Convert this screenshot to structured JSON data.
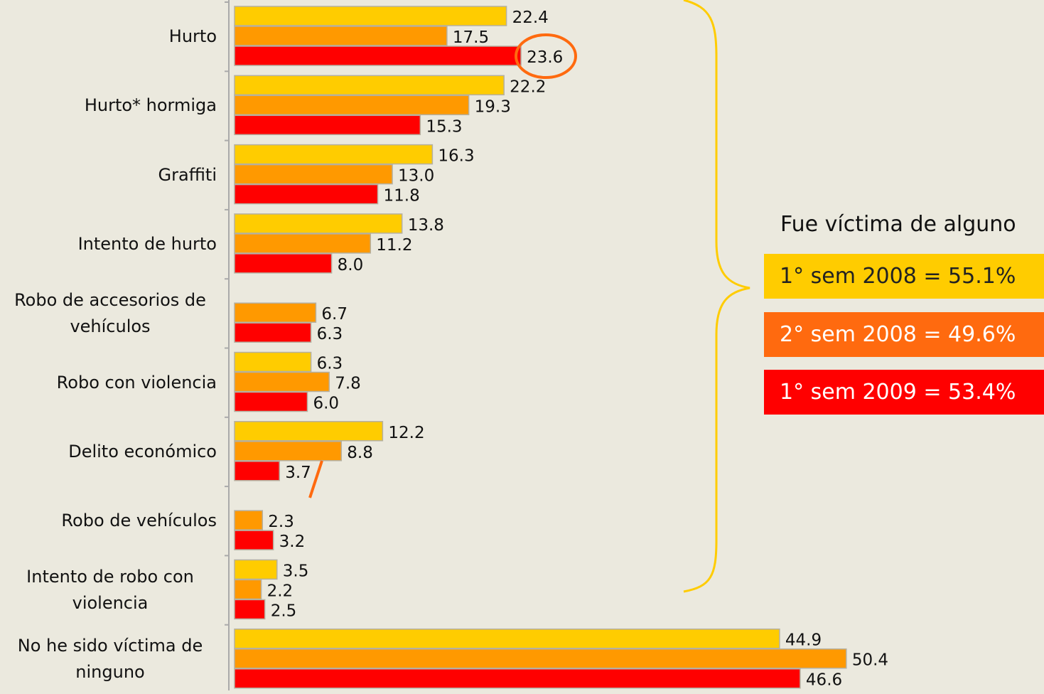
{
  "chart_data": {
    "type": "hbar",
    "annotation": "Fue víctima de alguno",
    "categories": [
      "Hurto",
      "Hurto* hormiga",
      "Graffiti",
      "Intento de hurto",
      "Robo de accesorios de vehículos",
      "Robo con violencia",
      "Delito económico",
      "Robo de  vehículos",
      "Intento de robo con violencia",
      "No he sido víctima de ninguno"
    ],
    "series": [
      {
        "name": "1° sem 2008 = 55.1%",
        "color": "#ffcc00",
        "values": [
          22.4,
          22.2,
          16.3,
          13.8,
          null,
          6.3,
          12.2,
          null,
          3.5,
          44.9
        ],
        "value_labels": [
          "22.4",
          "22.2",
          "16.3",
          "13.8",
          null,
          "6.3",
          "12.2",
          null,
          "3.5",
          "44.9"
        ]
      },
      {
        "name": "2° sem 2008 = 49.6%",
        "color": "#ff9900",
        "values": [
          17.5,
          19.3,
          13.0,
          11.2,
          6.7,
          7.8,
          8.8,
          2.3,
          2.2,
          50.4
        ],
        "value_labels": [
          "17.5",
          "19.3",
          "13.0",
          "11.2",
          "6.7",
          "7.8",
          "8.8",
          "2.3",
          "2.2",
          "50.4"
        ]
      },
      {
        "name": "1° sem 2009 = 53.4%",
        "color": "#ff0000",
        "values": [
          23.6,
          15.3,
          11.8,
          8.0,
          6.3,
          6.0,
          3.7,
          3.2,
          2.5,
          46.6
        ],
        "value_labels": [
          "23.6",
          "15.3",
          "11.8",
          "8.0",
          "6.3",
          "6.0",
          "3.7",
          "3.2",
          "2.5",
          "46.6"
        ]
      }
    ]
  }
}
